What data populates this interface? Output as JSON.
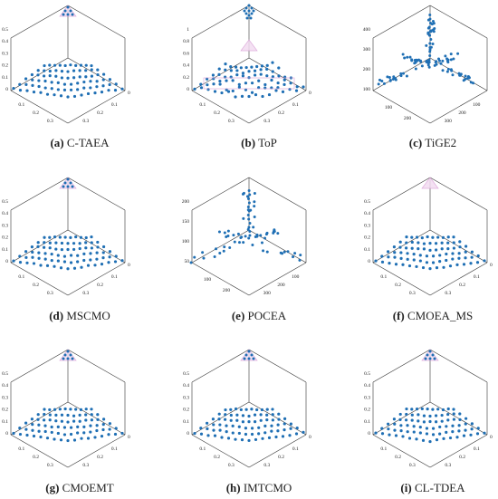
{
  "colors": {
    "point": "#1f6fb4",
    "axis": "#333333",
    "triangle": "#d9a0d6",
    "triangle_fill": "#f3dcf2"
  },
  "chart_data": [
    {
      "id": "a",
      "letter": "(a)",
      "label": "C-TAEA",
      "type": "scatter",
      "kind": "pf",
      "z_ticks": [
        "0.5",
        "0.4",
        "0.3",
        "0.2",
        "0.1",
        "0"
      ],
      "x_ticks": [
        "0.1",
        "0.2",
        "0.3"
      ],
      "y_ticks": [
        "0.1",
        "0.2",
        "0.3"
      ],
      "right_tick": "0",
      "grid": false,
      "top_cluster": true,
      "triangle": true,
      "layers": 6,
      "seed": 3
    },
    {
      "id": "b",
      "letter": "(b)",
      "label": "ToP",
      "type": "scatter",
      "kind": "top",
      "z_ticks": [
        "1",
        "0.8",
        "0.6",
        "0.4",
        "0.2",
        "0"
      ],
      "x_ticks": [
        "0.1",
        "0.2",
        "0.3"
      ],
      "y_ticks": [
        "0.1",
        "0.2",
        "0.3"
      ],
      "right_tick": "0",
      "grid": false,
      "top_cluster": true,
      "triangle": true,
      "layers": 6,
      "seed": 7
    },
    {
      "id": "c",
      "letter": "(c)",
      "label": "TiGE2",
      "type": "scatter",
      "kind": "star",
      "z_ticks": [
        "400",
        "300",
        "200",
        "100"
      ],
      "x_ticks": [
        "100",
        "200"
      ],
      "y_ticks": [
        "100",
        "200",
        "300"
      ],
      "right_tick": "",
      "grid": false,
      "top_cluster": false,
      "triangle": false,
      "layers": 0,
      "seed": 11
    },
    {
      "id": "d",
      "letter": "(d)",
      "label": "MSCMO",
      "type": "scatter",
      "kind": "pf",
      "z_ticks": [
        "0.5",
        "0.4",
        "0.3",
        "0.2",
        "0.1",
        "0"
      ],
      "x_ticks": [
        "0.1",
        "0.2",
        "0.3"
      ],
      "y_ticks": [
        "0.1",
        "0.2",
        "0.3"
      ],
      "right_tick": "0",
      "grid": false,
      "top_cluster": true,
      "triangle": true,
      "layers": 6,
      "seed": 13
    },
    {
      "id": "e",
      "letter": "(e)",
      "label": "POCEA",
      "type": "scatter",
      "kind": "star2",
      "z_ticks": [
        "200",
        "150",
        "100",
        "50"
      ],
      "x_ticks": [
        "100",
        "200"
      ],
      "y_ticks": [
        "100",
        "200",
        "300"
      ],
      "right_tick": "",
      "grid": false,
      "top_cluster": false,
      "triangle": false,
      "layers": 0,
      "seed": 17
    },
    {
      "id": "f",
      "letter": "(f)",
      "label": "CMOEA_MS",
      "type": "scatter",
      "kind": "pf",
      "z_ticks": [
        "0.5",
        "0.4",
        "0.3",
        "0.2",
        "0.1",
        "0"
      ],
      "x_ticks": [
        "0.1",
        "0.2",
        "0.3"
      ],
      "y_ticks": [
        "0.1",
        "0.2",
        "0.3"
      ],
      "right_tick": "0",
      "grid": false,
      "top_cluster": false,
      "triangle": true,
      "layers": 6,
      "seed": 19
    },
    {
      "id": "g",
      "letter": "(g)",
      "label": "CMOEMT",
      "type": "scatter",
      "kind": "pf",
      "z_ticks": [
        "0.5",
        "0.4",
        "0.3",
        "0.2",
        "0.1",
        "0"
      ],
      "x_ticks": [
        "0.1",
        "0.2",
        "0.3"
      ],
      "y_ticks": [
        "0.1",
        "0.2",
        "0.3"
      ],
      "right_tick": "0",
      "grid": false,
      "top_cluster": true,
      "triangle": true,
      "layers": 6,
      "seed": 23
    },
    {
      "id": "h",
      "letter": "(h)",
      "label": "IMTCMO",
      "type": "scatter",
      "kind": "pf",
      "z_ticks": [
        "0.5",
        "0.4",
        "0.3",
        "0.2",
        "0.1",
        "0"
      ],
      "x_ticks": [
        "0.1",
        "0.2",
        "0.3"
      ],
      "y_ticks": [
        "0.1",
        "0.2",
        "0.3"
      ],
      "right_tick": "0",
      "grid": false,
      "top_cluster": true,
      "triangle": true,
      "layers": 6,
      "seed": 29
    },
    {
      "id": "i",
      "letter": "(i)",
      "label": "CL-TDEA",
      "type": "scatter",
      "kind": "pf",
      "z_ticks": [
        "0.5",
        "0.4",
        "0.3",
        "0.2",
        "0.1",
        "0"
      ],
      "x_ticks": [
        "0.1",
        "0.2",
        "0.3"
      ],
      "y_ticks": [
        "0.1",
        "0.2",
        "0.3"
      ],
      "right_tick": "0",
      "grid": false,
      "top_cluster": true,
      "triangle": true,
      "layers": 6,
      "seed": 31
    }
  ]
}
